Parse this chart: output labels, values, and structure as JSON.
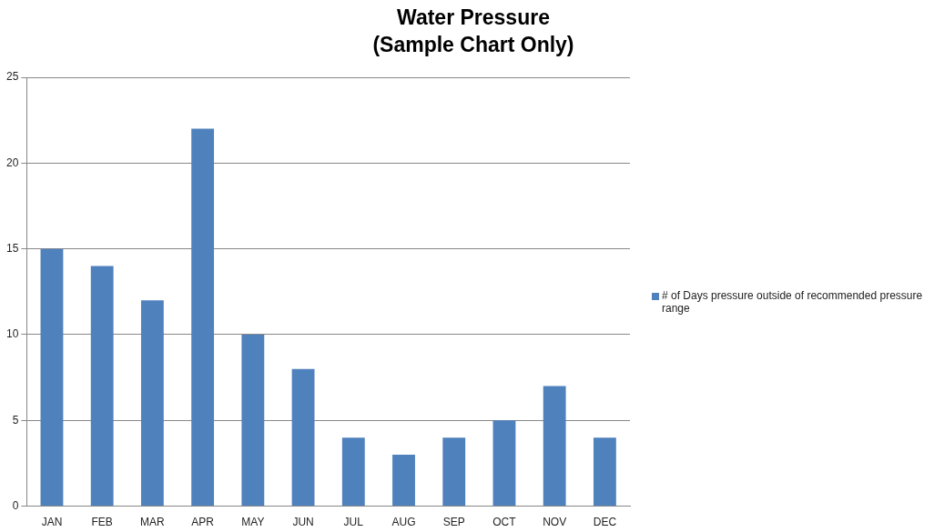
{
  "chart_data": {
    "type": "bar",
    "title": "Water Pressure",
    "subtitle": "(Sample Chart Only)",
    "categories": [
      "JAN",
      "FEB",
      "MAR",
      "APR",
      "MAY",
      "JUN",
      "JUL",
      "AUG",
      "SEP",
      "OCT",
      "NOV",
      "DEC"
    ],
    "series": [
      {
        "name": "# of Days pressure outside of recommended pressure range",
        "color": "#4f81bd",
        "values": [
          15,
          14,
          12,
          22,
          10,
          8,
          4,
          3,
          4,
          5,
          7,
          4
        ]
      }
    ],
    "ylim": [
      0,
      25
    ],
    "yticks": [
      0,
      5,
      10,
      15,
      20,
      25
    ],
    "grid": "y",
    "legend": "right"
  }
}
